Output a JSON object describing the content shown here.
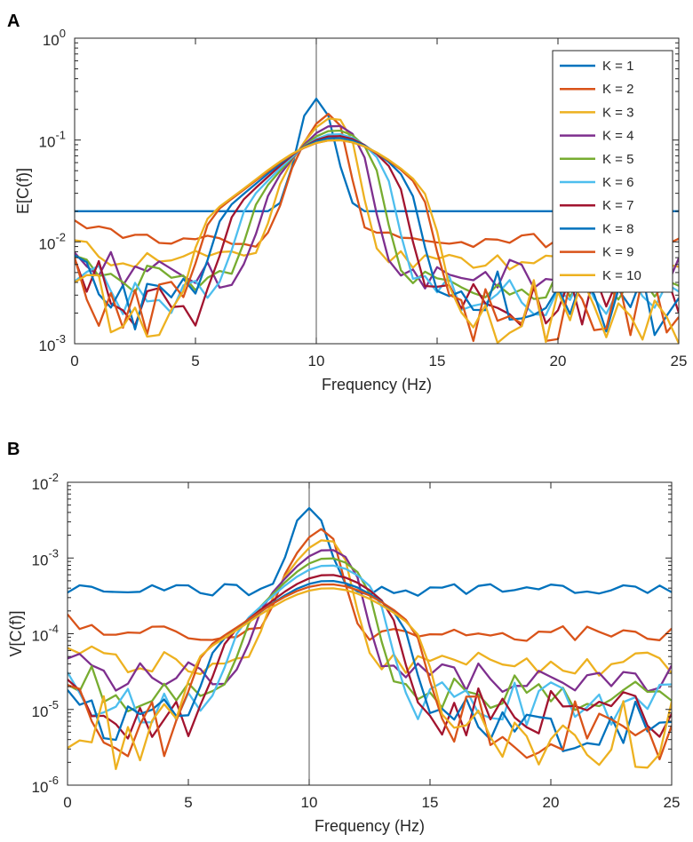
{
  "chart_data": [
    {
      "type": "line",
      "panel_label": "A",
      "title": "",
      "xlabel": "Frequency (Hz)",
      "ylabel": "E[C(f)]",
      "yscale": "log",
      "xlim": [
        0,
        25
      ],
      "ylim_exponents": [
        -3,
        0
      ],
      "x_ticks": [
        "0",
        "5",
        "10",
        "15",
        "20",
        "25"
      ],
      "y_tick_base": "10",
      "y_tick_exponents": [
        "-3",
        "-2",
        "-1",
        "0"
      ],
      "vertical_line_x": 10,
      "legend": "top-right",
      "series": [
        {
          "name": "K = 1",
          "color": "#0072BD",
          "params": {
            "base": 0.02,
            "peak": 0.28,
            "half": 1.0,
            "noise": 0
          }
        },
        {
          "name": "K = 2",
          "color": "#D95319",
          "params": {
            "base": 0.0105,
            "peak": 0.2,
            "half": 1.5,
            "noise": 0.04
          }
        },
        {
          "name": "K = 3",
          "color": "#EDB120",
          "params": {
            "base": 0.0065,
            "peak": 0.17,
            "half": 2.0,
            "noise": 0.05
          }
        },
        {
          "name": "K = 4",
          "color": "#7E2F8E",
          "params": {
            "base": 0.005,
            "peak": 0.14,
            "half": 2.5,
            "noise": 0.08
          }
        },
        {
          "name": "K = 5",
          "color": "#77AC30",
          "params": {
            "base": 0.004,
            "peak": 0.125,
            "half": 3.0,
            "noise": 0.1
          }
        },
        {
          "name": "K = 6",
          "color": "#4DBEEE",
          "params": {
            "base": 0.0033,
            "peak": 0.115,
            "half": 3.5,
            "noise": 0.12
          }
        },
        {
          "name": "K = 7",
          "color": "#A2142F",
          "params": {
            "base": 0.0028,
            "peak": 0.11,
            "half": 4.0,
            "noise": 0.14
          }
        },
        {
          "name": "K = 8",
          "color": "#0072BD",
          "params": {
            "base": 0.0025,
            "peak": 0.105,
            "half": 4.5,
            "noise": 0.16
          }
        },
        {
          "name": "K = 9",
          "color": "#D95319",
          "params": {
            "base": 0.0023,
            "peak": 0.1,
            "half": 5.0,
            "noise": 0.17
          }
        },
        {
          "name": "K = 10",
          "color": "#EDB120",
          "params": {
            "base": 0.0021,
            "peak": 0.1,
            "half": 5.2,
            "noise": 0.18
          }
        }
      ]
    },
    {
      "type": "line",
      "panel_label": "B",
      "title": "",
      "xlabel": "Frequency (Hz)",
      "ylabel": "V[C(f)]",
      "yscale": "log",
      "xlim": [
        0,
        25
      ],
      "ylim_exponents": [
        -6,
        -2
      ],
      "x_ticks": [
        "0",
        "5",
        "10",
        "15",
        "20",
        "25"
      ],
      "y_tick_base": "10",
      "y_tick_exponents": [
        "-6",
        "-5",
        "-4",
        "-3",
        "-2"
      ],
      "vertical_line_x": 10,
      "series": [
        {
          "name": "K = 1",
          "color": "#0072BD",
          "params": {
            "base": 0.00038,
            "peak": 0.005,
            "half": 1.0,
            "noise": 0.04
          }
        },
        {
          "name": "K = 2",
          "color": "#D95319",
          "params": {
            "base": 0.0001,
            "peak": 0.0027,
            "half": 1.5,
            "noise": 0.05
          }
        },
        {
          "name": "K = 3",
          "color": "#EDB120",
          "params": {
            "base": 4e-05,
            "peak": 0.0018,
            "half": 2.0,
            "noise": 0.08
          }
        },
        {
          "name": "K = 4",
          "color": "#7E2F8E",
          "params": {
            "base": 2.7e-05,
            "peak": 0.0013,
            "half": 2.5,
            "noise": 0.1
          }
        },
        {
          "name": "K = 5",
          "color": "#77AC30",
          "params": {
            "base": 1.7e-05,
            "peak": 0.001,
            "half": 3.0,
            "noise": 0.13
          }
        },
        {
          "name": "K = 6",
          "color": "#4DBEEE",
          "params": {
            "base": 1.2e-05,
            "peak": 0.0008,
            "half": 3.5,
            "noise": 0.15
          }
        },
        {
          "name": "K = 7",
          "color": "#A2142F",
          "params": {
            "base": 9e-06,
            "peak": 0.0006,
            "half": 4.0,
            "noise": 0.17
          }
        },
        {
          "name": "K = 8",
          "color": "#0072BD",
          "params": {
            "base": 6.5e-06,
            "peak": 0.0005,
            "half": 4.5,
            "noise": 0.2
          }
        },
        {
          "name": "K = 9",
          "color": "#D95319",
          "params": {
            "base": 5.5e-06,
            "peak": 0.00045,
            "half": 5.0,
            "noise": 0.22
          }
        },
        {
          "name": "K = 10",
          "color": "#EDB120",
          "params": {
            "base": 4.5e-06,
            "peak": 0.0004,
            "half": 5.2,
            "noise": 0.25
          }
        }
      ]
    }
  ]
}
